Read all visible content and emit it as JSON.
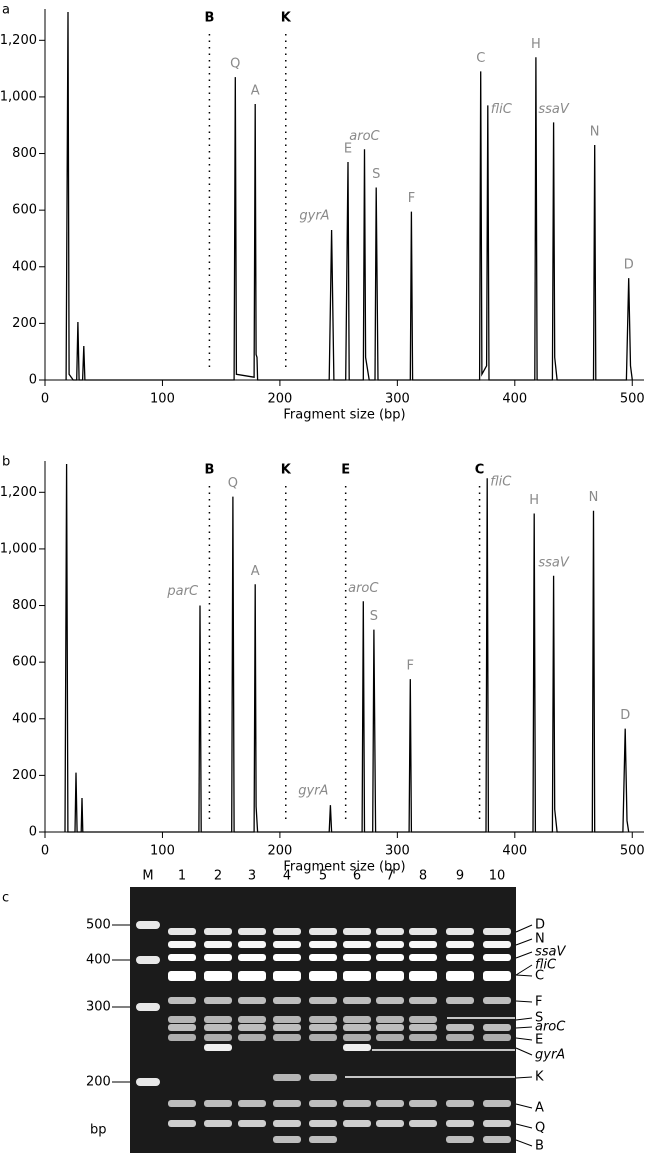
{
  "chart_data": [
    {
      "type": "line",
      "panel": "a",
      "xlabel": "Fragment size (bp)",
      "color": "#000000",
      "x": [
        18,
        19.6,
        20.5,
        24,
        27,
        28,
        29,
        32,
        33,
        34,
        161,
        162,
        163,
        178,
        179,
        179.7,
        180.5,
        181,
        242,
        244,
        246,
        256,
        258,
        259,
        271,
        272,
        273,
        276,
        281,
        282,
        283.5,
        311,
        312,
        313,
        370,
        371,
        372,
        376,
        377,
        378,
        417,
        418,
        419,
        432,
        433,
        434,
        436,
        467,
        468,
        469,
        495,
        497,
        498.5,
        500
      ],
      "values": [
        0,
        1300,
        20,
        0,
        0,
        205,
        0,
        0,
        120,
        0,
        0,
        1070,
        20,
        10,
        975,
        90,
        80,
        0,
        0,
        530,
        0,
        0,
        770,
        0,
        0,
        815,
        80,
        0,
        0,
        680,
        0,
        0,
        595,
        0,
        0,
        1090,
        20,
        50,
        970,
        0,
        0,
        1140,
        0,
        0,
        910,
        80,
        0,
        0,
        830,
        0,
        0,
        360,
        50,
        0
      ],
      "xlim": [
        0,
        510
      ],
      "ylim": [
        0,
        1300
      ],
      "xticks": [
        0,
        100,
        200,
        300,
        400,
        500
      ],
      "yticks": [
        0,
        200,
        400,
        600,
        800,
        {
          "value": 1000,
          "label": "1,000"
        },
        {
          "value": 1200,
          "label": "1,200"
        }
      ],
      "markers": [
        {
          "label": "B",
          "x": 140
        },
        {
          "label": "K",
          "x": 205
        }
      ],
      "annotations": [
        {
          "text": "Q",
          "x": 162,
          "y": 1070,
          "align": "middle",
          "italic": false
        },
        {
          "text": "A",
          "x": 179,
          "y": 975,
          "align": "middle",
          "italic": false
        },
        {
          "text": "gyrA",
          "x": 244,
          "y": 530,
          "align": "end",
          "italic": true
        },
        {
          "text": "E",
          "x": 258,
          "y": 770,
          "align": "middle",
          "italic": false
        },
        {
          "text": "aroC",
          "x": 272,
          "y": 815,
          "align": "middle",
          "italic": true
        },
        {
          "text": "S",
          "x": 282,
          "y": 680,
          "align": "middle",
          "italic": false
        },
        {
          "text": "F",
          "x": 312,
          "y": 595,
          "align": "middle",
          "italic": false
        },
        {
          "text": "C",
          "x": 371,
          "y": 1090,
          "align": "middle",
          "italic": false
        },
        {
          "text": "fliC",
          "x": 377,
          "y": 970,
          "align": "start",
          "italic": true
        },
        {
          "text": "H",
          "x": 418,
          "y": 1140,
          "align": "middle",
          "italic": false
        },
        {
          "text": "ssaV",
          "x": 433,
          "y": 910,
          "align": "middle",
          "italic": true
        },
        {
          "text": "N",
          "x": 468,
          "y": 830,
          "align": "middle",
          "italic": false
        },
        {
          "text": "D",
          "x": 497,
          "y": 360,
          "align": "middle",
          "italic": false
        }
      ]
    },
    {
      "type": "line",
      "panel": "b",
      "xlabel": "Fragment size (bp)",
      "color": "#000000",
      "x": [
        17,
        18.4,
        19.5,
        25.5,
        26.4,
        27.3,
        30.8,
        31.5,
        32.2,
        131,
        132,
        133,
        159,
        160,
        161,
        178,
        179,
        179.7,
        181,
        242,
        243,
        244,
        270,
        271,
        272,
        279,
        280,
        281.5,
        310,
        311,
        312,
        375.5,
        376.5,
        377.5,
        415.5,
        416.5,
        417.5,
        432,
        433,
        434,
        436,
        466,
        467,
        468,
        492,
        494,
        495.5,
        497
      ],
      "values": [
        0,
        1300,
        0,
        0,
        210,
        0,
        0,
        120,
        0,
        0,
        800,
        0,
        0,
        1185,
        0,
        0,
        875,
        90,
        0,
        0,
        95,
        0,
        0,
        815,
        0,
        0,
        715,
        0,
        0,
        540,
        0,
        0,
        1250,
        0,
        0,
        1125,
        0,
        0,
        905,
        80,
        0,
        0,
        1135,
        0,
        0,
        365,
        40,
        0
      ],
      "xlim": [
        0,
        510
      ],
      "ylim": [
        0,
        1300
      ],
      "xticks": [
        0,
        100,
        200,
        300,
        400,
        500
      ],
      "yticks": [
        0,
        200,
        400,
        600,
        800,
        {
          "value": 1000,
          "label": "1,000"
        },
        {
          "value": 1200,
          "label": "1,200"
        }
      ],
      "markers": [
        {
          "label": "B",
          "x": 140
        },
        {
          "label": "K",
          "x": 205
        },
        {
          "label": "E",
          "x": 256
        },
        {
          "label": "C",
          "x": 370
        }
      ],
      "annotations": [
        {
          "text": "parC",
          "x": 132,
          "y": 800,
          "align": "end",
          "italic": true
        },
        {
          "text": "Q",
          "x": 160,
          "y": 1185,
          "align": "middle",
          "italic": false
        },
        {
          "text": "A",
          "x": 179,
          "y": 875,
          "align": "middle",
          "italic": false
        },
        {
          "text": "gyrA",
          "x": 243,
          "y": 95,
          "align": "end",
          "italic": true
        },
        {
          "text": "aroC",
          "x": 271,
          "y": 815,
          "align": "middle",
          "italic": true
        },
        {
          "text": "S",
          "x": 280,
          "y": 715,
          "align": "middle",
          "italic": false
        },
        {
          "text": "F",
          "x": 311,
          "y": 540,
          "align": "middle",
          "italic": false
        },
        {
          "text": "fliC",
          "x": 376.5,
          "y": 1250,
          "align": "start",
          "italic": true
        },
        {
          "text": "H",
          "x": 416.5,
          "y": 1125,
          "align": "middle",
          "italic": false
        },
        {
          "text": "ssaV",
          "x": 433,
          "y": 905,
          "align": "middle",
          "italic": true
        },
        {
          "text": "N",
          "x": 467,
          "y": 1135,
          "align": "middle",
          "italic": false
        },
        {
          "text": "D",
          "x": 494,
          "y": 365,
          "align": "middle",
          "italic": false
        }
      ]
    }
  ],
  "gel": {
    "panel": "c",
    "lanes": [
      "M",
      "1",
      "2",
      "3",
      "4",
      "5",
      "6",
      "7",
      "8",
      "9",
      "10"
    ],
    "marker_labels": [
      "500",
      "400",
      "300",
      "200"
    ],
    "unit": "bp",
    "band_labels": [
      {
        "text": "D",
        "italic": false
      },
      {
        "text": "N",
        "italic": false
      },
      {
        "text": "ssaV",
        "italic": true
      },
      {
        "text": "fliC",
        "italic": true
      },
      {
        "text": "C",
        "italic": false
      },
      {
        "text": "F",
        "italic": false
      },
      {
        "text": "S",
        "italic": false
      },
      {
        "text": "aroC",
        "italic": true
      },
      {
        "text": "E",
        "italic": false
      },
      {
        "text": "gyrA",
        "italic": true
      },
      {
        "text": "K",
        "italic": false
      },
      {
        "text": "A",
        "italic": false
      },
      {
        "text": "Q",
        "italic": false
      },
      {
        "text": "B",
        "italic": false
      }
    ]
  }
}
